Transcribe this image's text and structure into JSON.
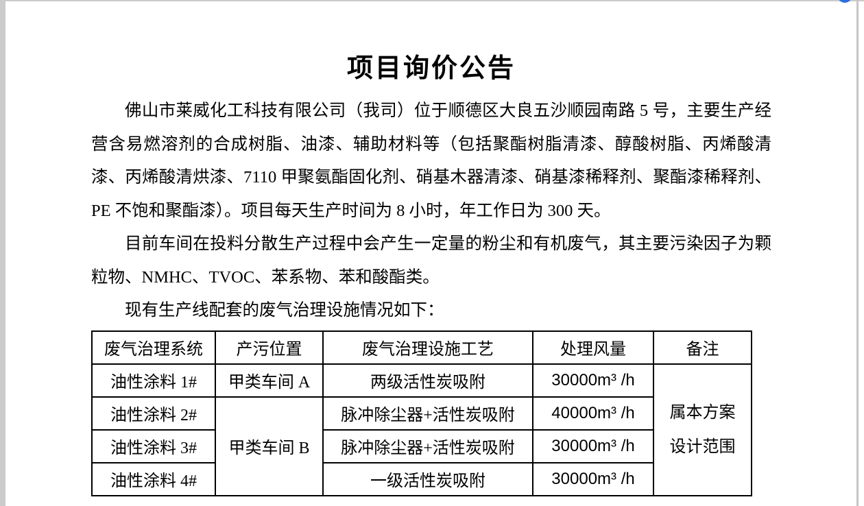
{
  "ui": {
    "floating_button_color": "#2e6fe0",
    "gutter_color": "#cbcbcb"
  },
  "doc": {
    "title": "项目询价公告",
    "paragraphs": [
      "佛山市莱威化工科技有限公司（我司）位于顺德区大良五沙顺园南路 5 号，主要生产经营含易燃溶剂的合成树脂、油漆、辅助材料等（包括聚酯树脂清漆、醇酸树脂、丙烯酸清漆、丙烯酸清烘漆、7110 甲聚氨酯固化剂、硝基木器清漆、硝基漆稀释剂、聚酯漆稀释剂、PE 不饱和聚酯漆）。项目每天生产时间为 8 小时，年工作日为 300 天。",
      "目前车间在投料分散生产过程中会产生一定量的粉尘和有机废气，其主要污染因子为颗粒物、NMHC、TVOC、苯系物、苯和酸酯类。",
      "现有生产线配套的废气治理设施情况如下："
    ],
    "table": {
      "headers": [
        "废气治理系统",
        "产污位置",
        "废气治理设施工艺",
        "处理风量",
        "备注"
      ],
      "rows": [
        {
          "system": "油性涂料 1#",
          "location": "甲类车间 A",
          "process": "两级活性炭吸附",
          "airflow": "30000m³ /h"
        },
        {
          "system": "油性涂料 2#",
          "location": "甲类车间 B",
          "process": "脉冲除尘器+活性炭吸附",
          "airflow": "40000m³ /h"
        },
        {
          "system": "油性涂料 3#",
          "location": "",
          "process": "脉冲除尘器+活性炭吸附",
          "airflow": "30000m³ /h"
        },
        {
          "system": "油性涂料 4#",
          "location": "",
          "process": "一级活性炭吸附",
          "airflow": "30000m³ /h"
        }
      ],
      "remark": "属本方案\n设计范围"
    }
  }
}
